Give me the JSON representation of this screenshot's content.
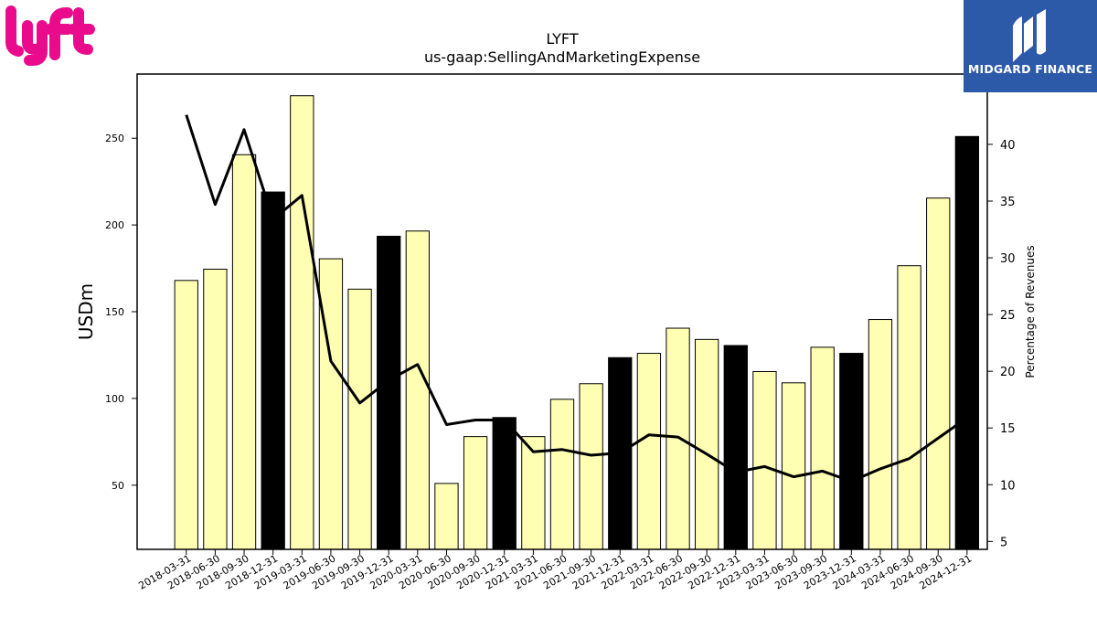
{
  "brand": {
    "left_logo": "lyft",
    "left_logo_color": "#ea0b8c",
    "right_logo": "MIDGARD FINANCE",
    "right_logo_color": "#2c5aa8"
  },
  "chart_data": {
    "type": "bar",
    "title": "LYFT",
    "subtitle": "us-gaap:SellingAndMarketingExpense",
    "ylabel": "USDm",
    "y2label": "Percentage of Revenues",
    "ylim": [
      13,
      287
    ],
    "y2lim": [
      4.3,
      46.2
    ],
    "yticks": [
      50,
      100,
      150,
      200,
      250
    ],
    "y2ticks": [
      5,
      10,
      15,
      20,
      25,
      30,
      35,
      40
    ],
    "categories": [
      "2018-03-31",
      "2018-06-30",
      "2018-09-30",
      "2018-12-31",
      "2019-03-31",
      "2019-06-30",
      "2019-09-30",
      "2019-12-31",
      "2020-03-31",
      "2020-06-30",
      "2020-09-30",
      "2020-12-31",
      "2021-03-31",
      "2021-06-30",
      "2021-09-30",
      "2021-12-31",
      "2022-03-31",
      "2022-06-30",
      "2022-09-30",
      "2022-12-31",
      "2023-03-31",
      "2023-06-30",
      "2023-09-30",
      "2023-12-31",
      "2024-03-31",
      "2024-06-30",
      "2024-09-30",
      "2024-12-31"
    ],
    "series": [
      {
        "type": "bar",
        "axis": "left",
        "values": [
          168,
          174.5,
          240.5,
          219,
          274.5,
          180.5,
          163,
          193.5,
          196.5,
          51,
          78,
          89,
          78,
          99.5,
          108.5,
          123.5,
          126,
          140.5,
          134,
          130.5,
          115.5,
          109,
          129.5,
          126,
          145.5,
          176.5,
          215.5,
          251
        ],
        "highlight": [
          false,
          false,
          false,
          true,
          false,
          false,
          false,
          true,
          false,
          false,
          false,
          true,
          false,
          false,
          false,
          true,
          false,
          false,
          false,
          true,
          false,
          false,
          false,
          true,
          false,
          false,
          false,
          true
        ],
        "color": "#ffffb3",
        "highlight_color": "#000000"
      },
      {
        "type": "line",
        "axis": "right",
        "values": [
          42.6,
          34.7,
          41.3,
          33.4,
          35.5,
          20.9,
          17.2,
          19.2,
          20.6,
          15.3,
          15.7,
          15.7,
          12.9,
          13.1,
          12.6,
          12.8,
          14.4,
          14.2,
          12.7,
          11.1,
          11.6,
          10.7,
          11.2,
          10.3,
          11.4,
          12.3,
          14.1,
          15.9
        ],
        "color": "#000000"
      }
    ],
    "grid": false,
    "legend": "none"
  }
}
